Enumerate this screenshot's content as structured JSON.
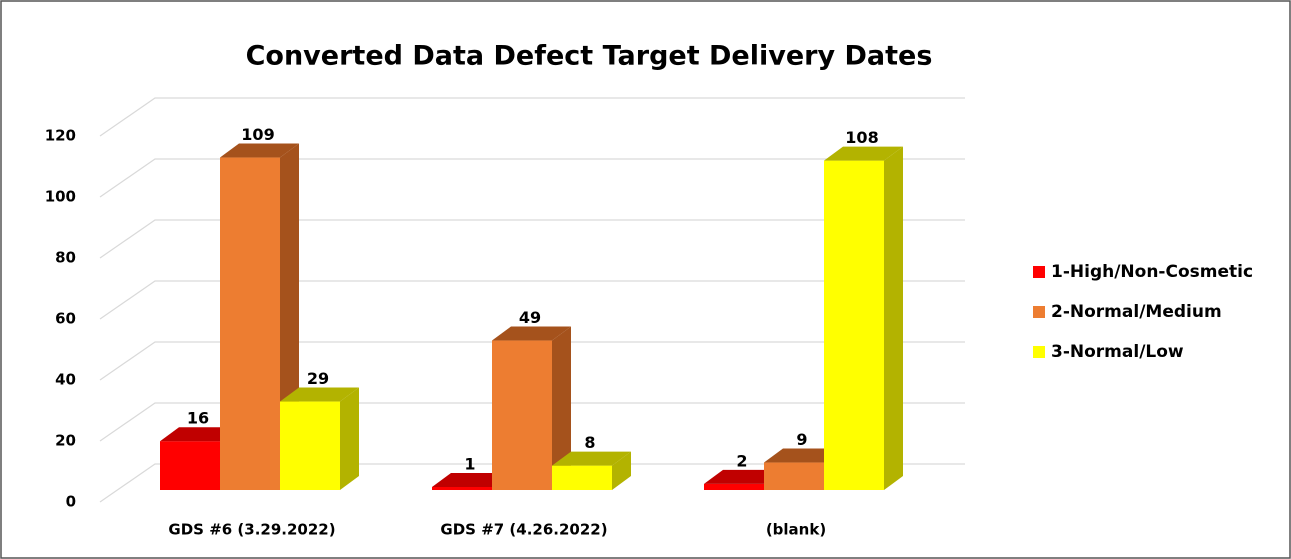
{
  "chart_data": {
    "type": "bar3d",
    "title": "Converted Data Defect Target Delivery Dates",
    "categories": [
      "GDS #6 (3.29.2022)",
      "GDS #7 (4.26.2022)",
      "(blank)"
    ],
    "series": [
      {
        "name": "1-High/Non-Cosmetic",
        "color": "#ff0000",
        "side": "#c00000",
        "values": [
          16,
          1,
          2
        ]
      },
      {
        "name": "2-Normal/Medium",
        "color": "#ed7d31",
        "side": "#a5521c",
        "values": [
          109,
          49,
          9
        ]
      },
      {
        "name": "3-Normal/Low",
        "color": "#ffff00",
        "side": "#b3b300",
        "values": [
          29,
          8,
          108
        ]
      }
    ],
    "ylim": [
      0,
      120
    ],
    "yticks": [
      0,
      20,
      40,
      60,
      80,
      100,
      120
    ],
    "grid": true,
    "legend": "right"
  }
}
